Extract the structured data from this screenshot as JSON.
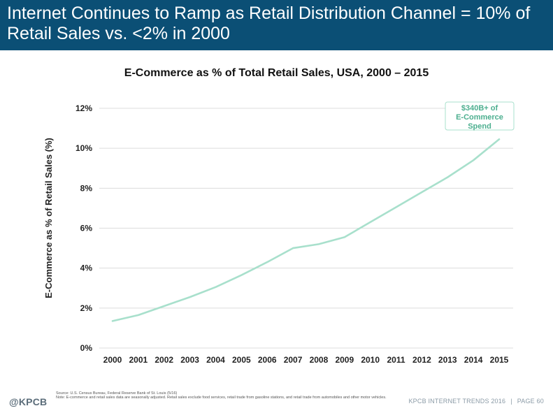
{
  "header": {
    "title": "Internet Continues to Ramp as Retail Distribution Channel = 10% of Retail Sales vs. <2% in 2000"
  },
  "chart_data": {
    "type": "line",
    "title": "E-Commerce as % of Total Retail Sales, USA, 2000 – 2015",
    "xlabel": "",
    "ylabel": "E-Commerce as % of Retail Sales (%)",
    "categories": [
      "2000",
      "2001",
      "2002",
      "2003",
      "2004",
      "2005",
      "2006",
      "2007",
      "2008",
      "2009",
      "2010",
      "2011",
      "2012",
      "2013",
      "2014",
      "2015"
    ],
    "series": [
      {
        "values": [
          1.35,
          1.65,
          2.1,
          2.55,
          3.05,
          3.65,
          4.3,
          5.0,
          5.2,
          5.55,
          6.3,
          7.05,
          7.8,
          8.55,
          9.4,
          10.45
        ]
      }
    ],
    "ylim": [
      0,
      12
    ],
    "yticks": [
      0,
      2,
      4,
      6,
      8,
      10,
      12
    ],
    "ytick_labels": [
      "0%",
      "2%",
      "4%",
      "6%",
      "8%",
      "10%",
      "12%"
    ],
    "grid": true,
    "legend": "none",
    "annotation": {
      "lines": [
        "$340B+ of",
        "E-Commerce",
        "Spend"
      ]
    },
    "colors": {
      "line": "#a8e0cc",
      "grid": "#dcdcdc",
      "annotation_border": "#a8e0cc",
      "annotation_text": "#4caf8f"
    }
  },
  "footer": {
    "source": "Source: U.S. Census Bureau, Federal Reserve Bank of St. Louis (5/16)",
    "note": "Note: E-commerce and retail sales data are seasonally adjusted. Retail sales exclude food services, retail trade from gasoline stations, and retail trade from automobiles and other motor vehicles.",
    "logo": "@KPCB",
    "brand": "KPCB INTERNET TRENDS 2016",
    "separator": "|",
    "page": "PAGE 60"
  },
  "colors": {
    "header_bg": "#0b4f75",
    "header_text": "#ffffff"
  }
}
